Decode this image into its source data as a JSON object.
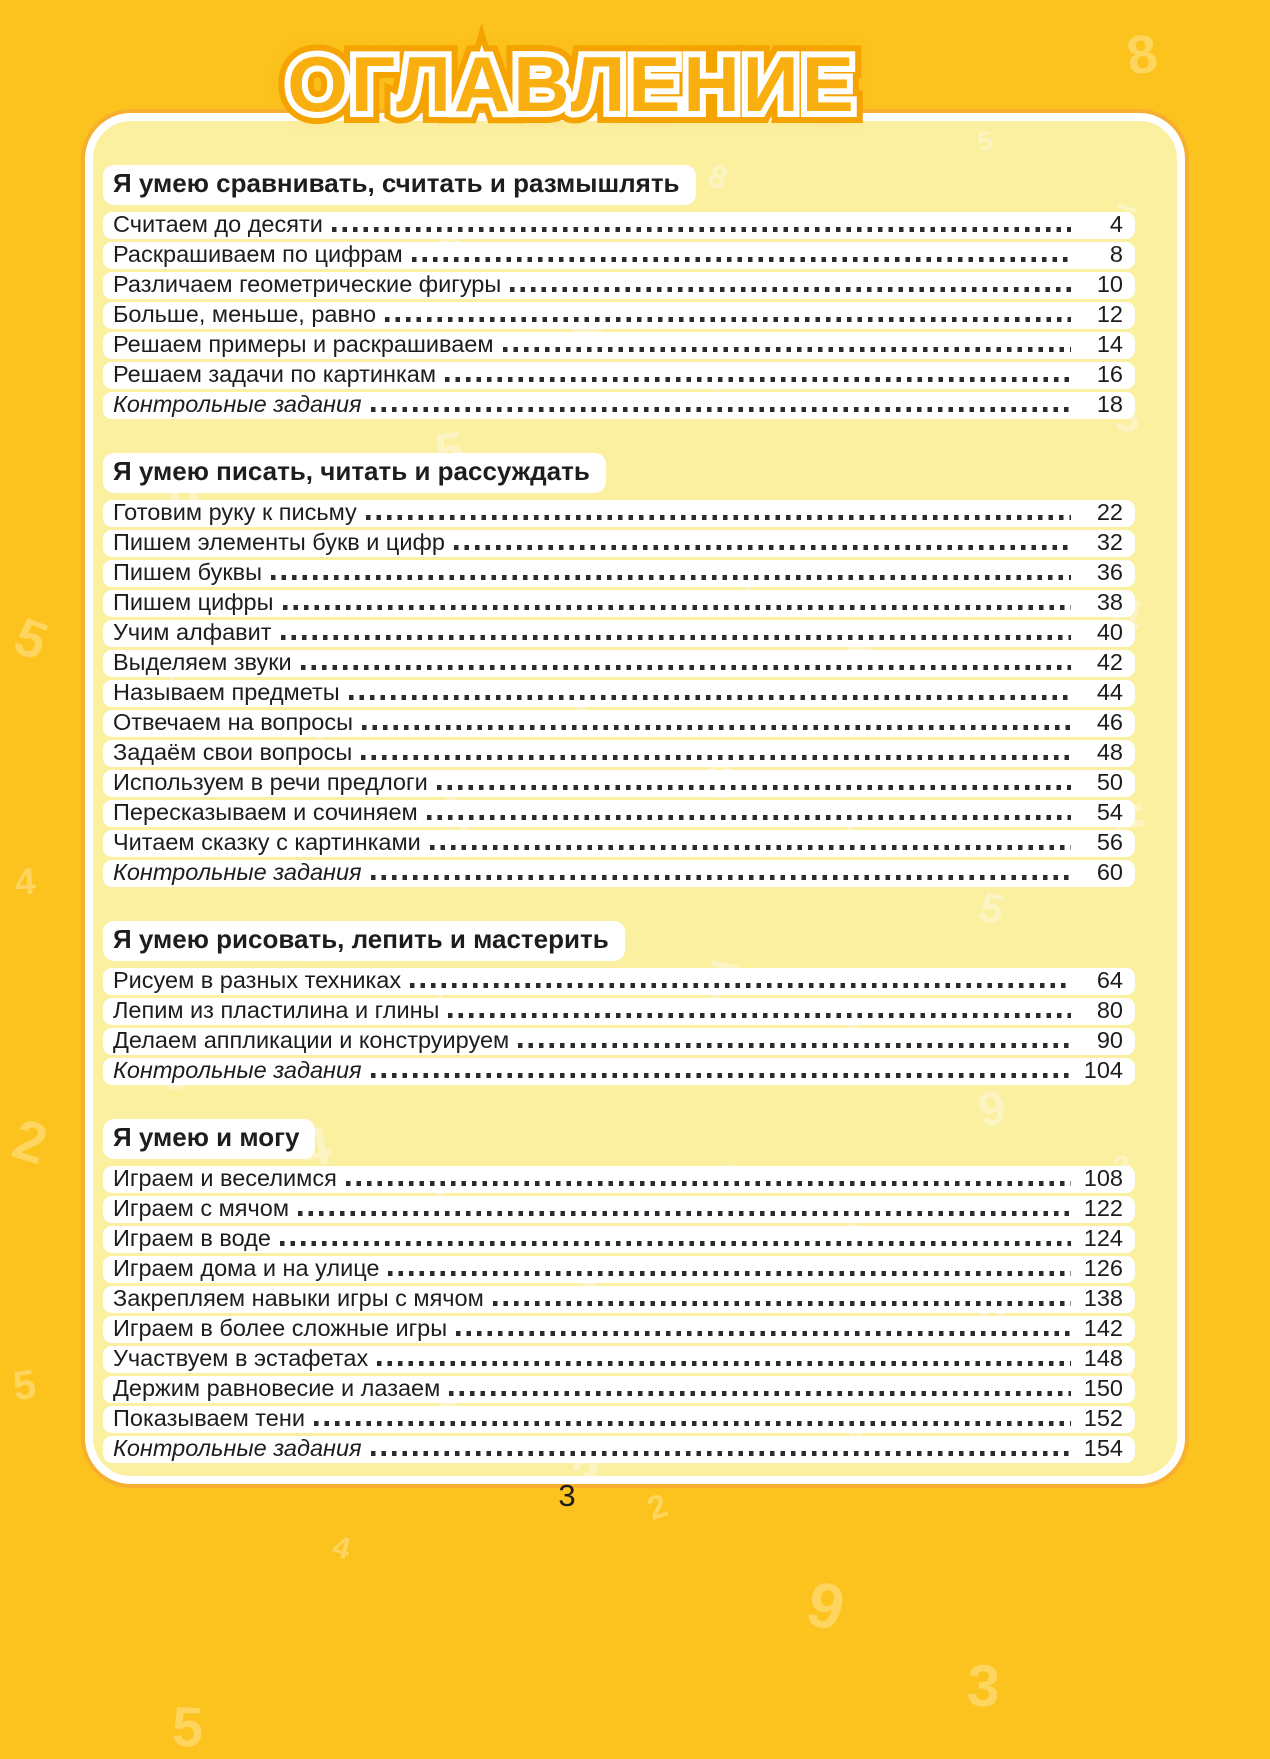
{
  "page": {
    "title": "ОГЛАВЛЕНИЕ",
    "page_number": "3"
  },
  "colors": {
    "outer_bg": "#FCC21D",
    "card_bg": "#FBEFA0",
    "title_fill": "#F9AF0F",
    "title_glow": "#F4A300",
    "text": "#1D1D1B",
    "dots": "#2A2A2A",
    "wm_outer": "#FDD55F",
    "wm_card": "#FCF5C3"
  },
  "decor": {
    "glyphs": "83927465—=54"
  },
  "sections": [
    {
      "header": "Я умею сравнивать, считать и размышлять",
      "entries": [
        {
          "label": "Считаем до десяти",
          "page": "4"
        },
        {
          "label": "Раскрашиваем по цифрам",
          "page": "8"
        },
        {
          "label": "Различаем геометрические фигуры",
          "page": "10"
        },
        {
          "label": "Больше, меньше, равно",
          "page": "12"
        },
        {
          "label": "Решаем примеры и раскрашиваем",
          "page": "14"
        },
        {
          "label": "Решаем задачи по картинкам",
          "page": "16"
        },
        {
          "label": "Контрольные задания",
          "page": "18",
          "italic": true
        }
      ]
    },
    {
      "header": "Я умею писать, читать и рассуждать",
      "entries": [
        {
          "label": "Готовим руку к письму",
          "page": "22"
        },
        {
          "label": "Пишем элементы букв и цифр",
          "page": "32"
        },
        {
          "label": "Пишем буквы",
          "page": "36"
        },
        {
          "label": "Пишем цифры",
          "page": "38"
        },
        {
          "label": "Учим алфавит",
          "page": "40"
        },
        {
          "label": "Выделяем звуки",
          "page": "42"
        },
        {
          "label": "Называем предметы",
          "page": "44"
        },
        {
          "label": "Отвечаем на вопросы",
          "page": "46"
        },
        {
          "label": "Задаём свои вопросы",
          "page": "48"
        },
        {
          "label": "Используем в речи предлоги",
          "page": "50"
        },
        {
          "label": "Пересказываем и сочиняем",
          "page": "54"
        },
        {
          "label": "Читаем сказку с картинками",
          "page": "56"
        },
        {
          "label": "Контрольные задания",
          "page": "60",
          "italic": true
        }
      ]
    },
    {
      "header": "Я умею рисовать, лепить и мастерить",
      "entries": [
        {
          "label": "Рисуем в разных техниках",
          "page": "64"
        },
        {
          "label": "Лепим из пластилина и глины",
          "page": "80"
        },
        {
          "label": "Делаем аппликации и конструируем",
          "page": "90"
        },
        {
          "label": "Контрольные задания",
          "page": "104",
          "italic": true
        }
      ]
    },
    {
      "header": "Я умею и могу",
      "entries": [
        {
          "label": "Играем и веселимся",
          "page": "108"
        },
        {
          "label": "Играем с мячом",
          "page": "122"
        },
        {
          "label": "Играем в воде",
          "page": "124"
        },
        {
          "label": "Играем дома и на улице",
          "page": "126"
        },
        {
          "label": "Закрепляем навыки игры с мячом",
          "page": "138"
        },
        {
          "label": "Играем в более сложные игры",
          "page": "142"
        },
        {
          "label": "Участвуем в эстафетах",
          "page": "148"
        },
        {
          "label": "Держим равновесие и лазаем",
          "page": "150"
        },
        {
          "label": "Показываем тени",
          "page": "152"
        },
        {
          "label": "Контрольные задания",
          "page": "154",
          "italic": true
        }
      ]
    }
  ]
}
